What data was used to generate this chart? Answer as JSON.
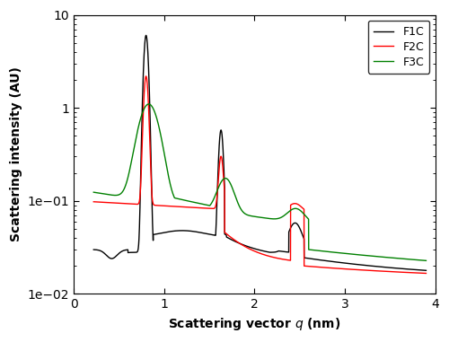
{
  "title": "",
  "xlabel": "Scattering vector $q$ (nm)",
  "ylabel": "Scattering intensity (AU)",
  "xlim": [
    0.2,
    4.0
  ],
  "ylim_log": [
    0.01,
    10
  ],
  "xticks": [
    0,
    1,
    2,
    3,
    4
  ],
  "legend_labels": [
    "F1C",
    "F2C",
    "F3C"
  ],
  "colors": [
    "black",
    "red",
    "green"
  ],
  "background_color": "#ffffff"
}
